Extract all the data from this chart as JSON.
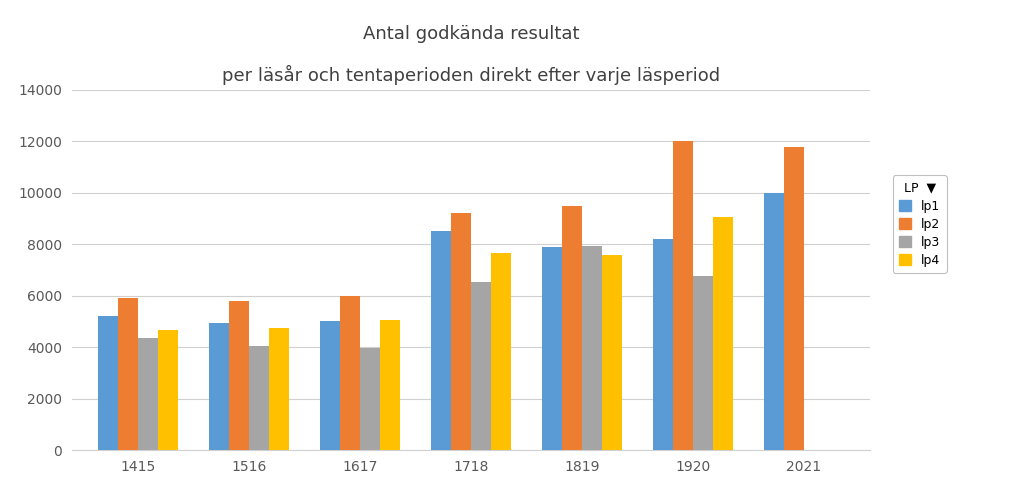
{
  "title_line1": "Antal godkända resultat",
  "title_line2": "per läsår och tentaperioden direkt efter varje läsperiod",
  "categories": [
    "1415",
    "1516",
    "1617",
    "1718",
    "1819",
    "1920",
    "2021"
  ],
  "series": {
    "lp1": [
      5200,
      4950,
      5000,
      8500,
      7900,
      8200,
      10000
    ],
    "lp2": [
      5900,
      5800,
      6000,
      9200,
      9500,
      12000,
      11800
    ],
    "lp3": [
      4350,
      4050,
      3950,
      6550,
      7950,
      6750,
      null
    ],
    "lp4": [
      4650,
      4750,
      5050,
      7650,
      7600,
      9050,
      null
    ]
  },
  "colors": {
    "lp1": "#5B9BD5",
    "lp2": "#ED7D31",
    "lp3": "#A5A5A5",
    "lp4": "#FFC000"
  },
  "ylim": [
    0,
    14000
  ],
  "yticks": [
    0,
    2000,
    4000,
    6000,
    8000,
    10000,
    12000,
    14000
  ],
  "legend_title": "LP",
  "background_color": "#FFFFFF",
  "title_fontsize": 13,
  "tick_fontsize": 10,
  "legend_fontsize": 9,
  "bar_width": 0.18,
  "grid_color": "#D0D0D0",
  "text_color": "#595959"
}
